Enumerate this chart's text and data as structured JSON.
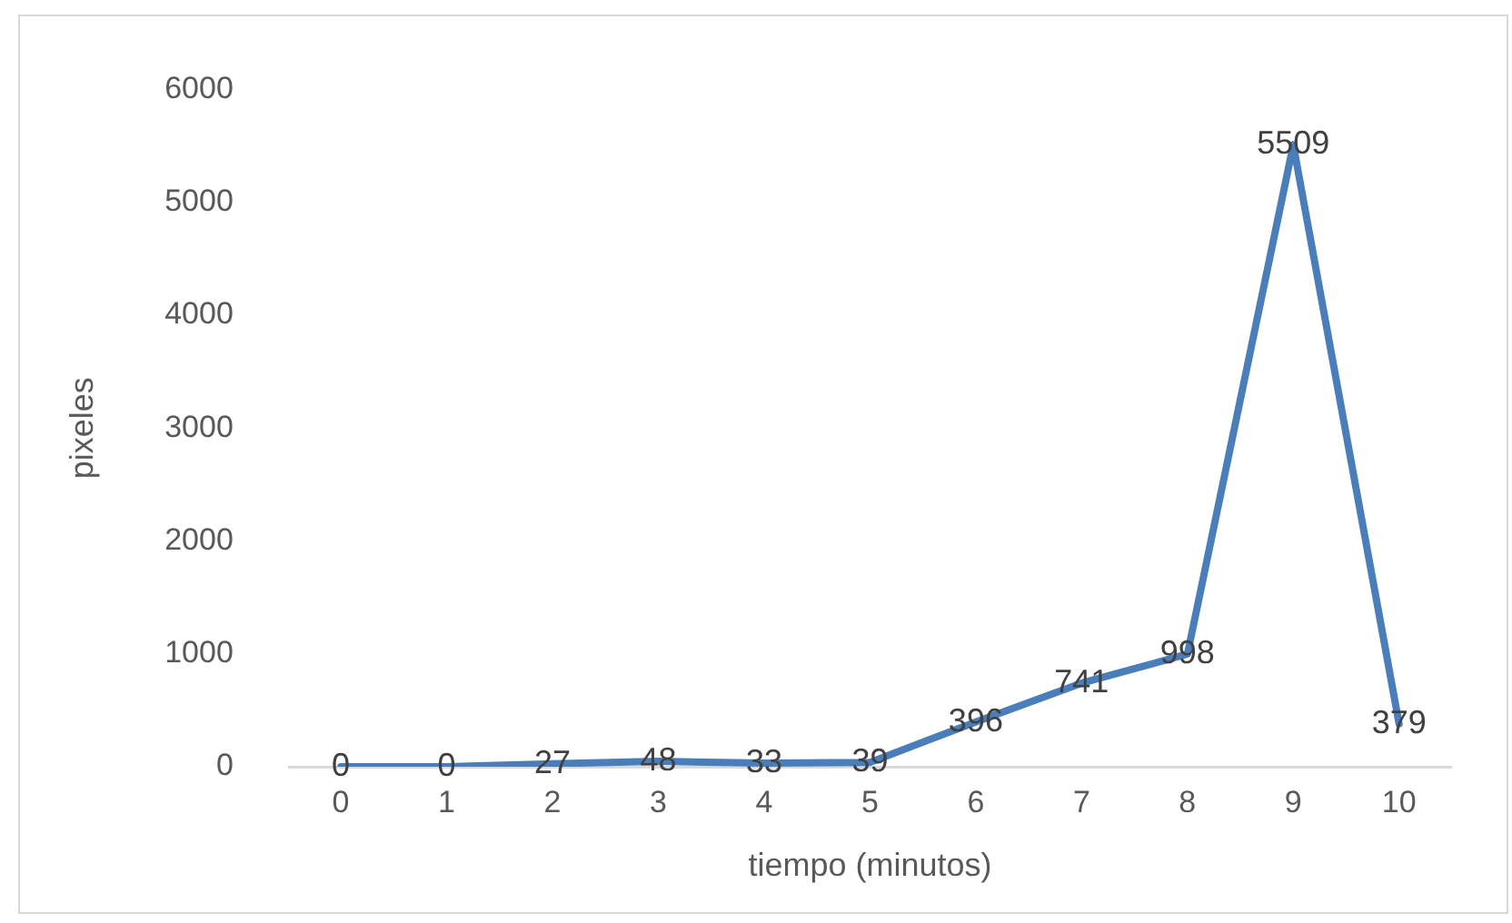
{
  "chart_data": {
    "type": "line",
    "xlabel": "tiempo (minutos)",
    "ylabel": "pixeles",
    "categories": [
      "0",
      "1",
      "2",
      "3",
      "4",
      "5",
      "6",
      "7",
      "8",
      "9",
      "10"
    ],
    "values": [
      0,
      0,
      27,
      48,
      33,
      39,
      396,
      741,
      998,
      5509,
      379
    ],
    "color": "#4a7ebb",
    "ylim": [
      0,
      6000
    ],
    "yticks": [
      0,
      1000,
      2000,
      3000,
      4000,
      5000,
      6000
    ],
    "data_labels": true,
    "grid": false,
    "legend": false,
    "marker": "none",
    "line_style": "solid"
  }
}
